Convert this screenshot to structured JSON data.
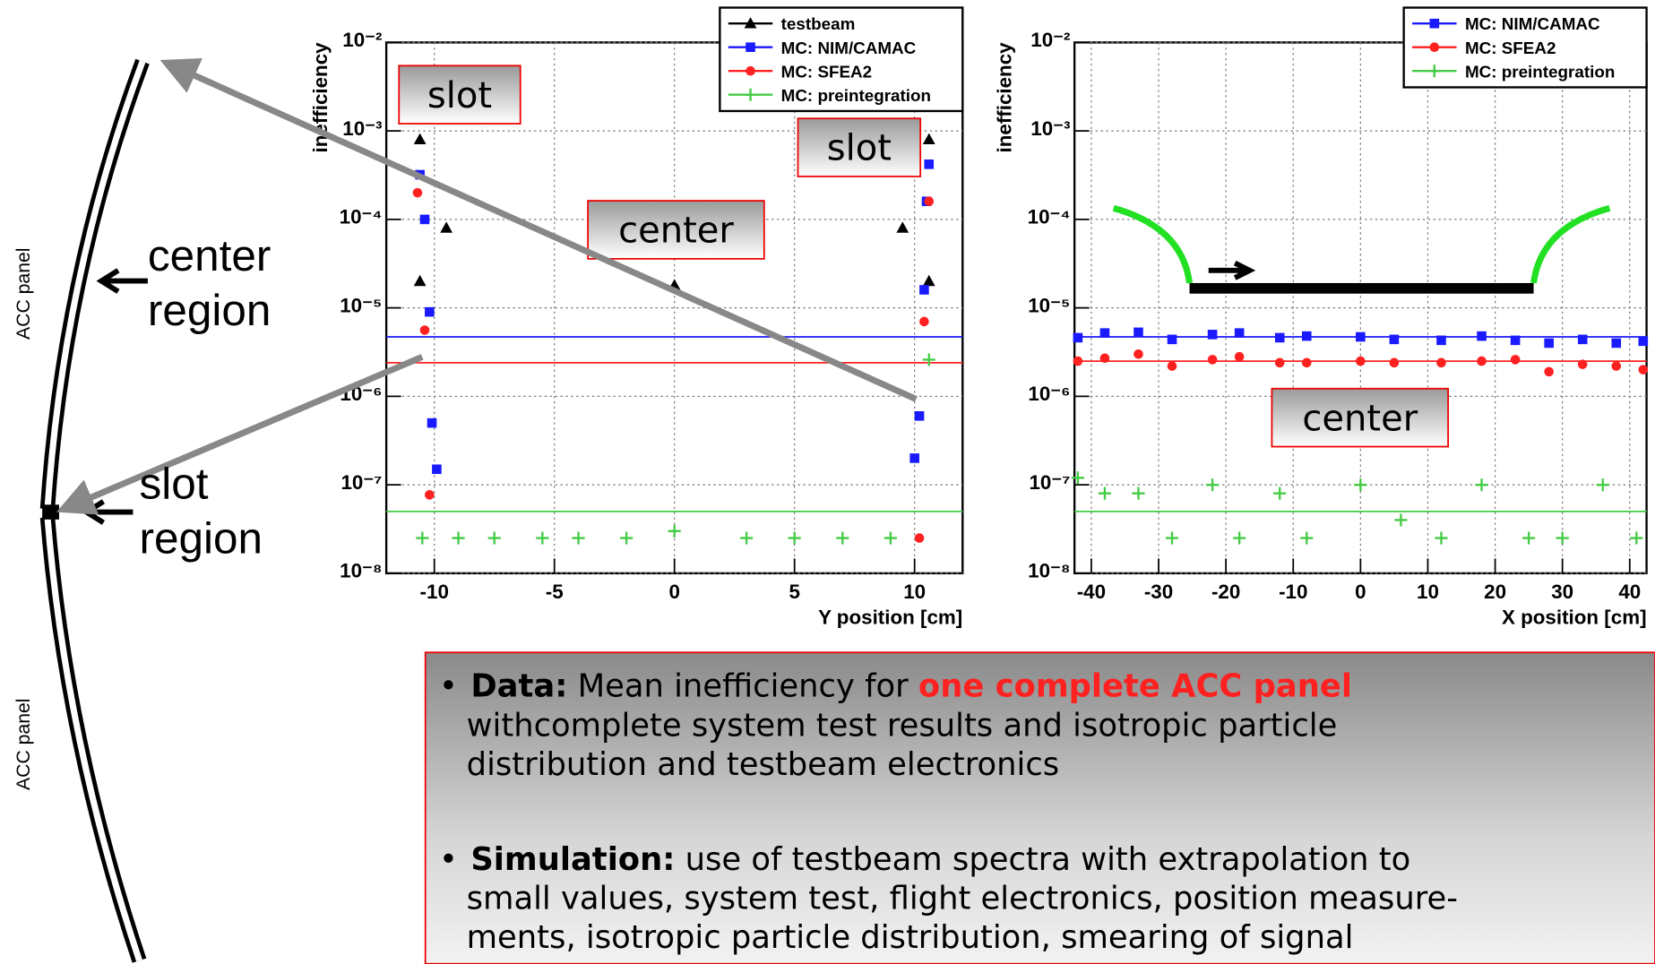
{
  "chart_data": [
    {
      "type": "scatter",
      "log_y": true,
      "grid": true,
      "legend": "top right",
      "y_label": "inefficiency",
      "x_label": "Y position [cm]",
      "xlim": [
        -12,
        12
      ],
      "xticks": [
        -10,
        -5,
        0,
        5,
        10
      ],
      "ylim": [
        1e-08,
        0.01
      ],
      "yticks": [
        {
          "value": 1e-08,
          "label": "10⁻⁸"
        },
        {
          "value": 1e-07,
          "label": "10⁻⁷"
        },
        {
          "value": 1e-06,
          "label": "10⁻⁶"
        },
        {
          "value": 1e-05,
          "label": "10⁻⁵"
        },
        {
          "value": 0.0001,
          "label": "10⁻⁴"
        },
        {
          "value": 0.001,
          "label": "10⁻³"
        },
        {
          "value": 0.01,
          "label": "10⁻²"
        }
      ],
      "annotations": [
        "slot",
        "slot",
        "center"
      ],
      "hlines": [
        {
          "value": 4.7e-06,
          "color": "#1a1aff"
        },
        {
          "value": 2.4e-06,
          "color": "#ff2020"
        },
        {
          "value": 5e-08,
          "color": "#44cc44"
        }
      ],
      "series": [
        {
          "name": "testbeam",
          "color": "#000000",
          "marker": "triangle",
          "x": [
            -10.6,
            -10.6,
            -9.5,
            0,
            9.5,
            10.6,
            10.6
          ],
          "values": [
            0.0008,
            2e-05,
            8e-05,
            1.8e-05,
            8e-05,
            2e-05,
            0.0008
          ]
        },
        {
          "name": "MC: NIM/CAMAC",
          "color": "#1a1aff",
          "marker": "square",
          "x": [
            -10.6,
            -10.4,
            -10.2,
            -10.1,
            -9.9,
            10.6,
            10.5,
            10.4,
            10.2,
            10.0
          ],
          "values": [
            0.00032,
            0.0001,
            9e-06,
            5e-07,
            1.5e-07,
            0.00042,
            0.00016,
            1.6e-05,
            6e-07,
            2e-07
          ]
        },
        {
          "name": "MC: SFEA2",
          "color": "#ff2020",
          "marker": "circle",
          "x": [
            -10.7,
            -10.4,
            -10.2,
            10.6,
            10.4,
            10.2
          ],
          "values": [
            0.0002,
            5.6e-06,
            7.7e-08,
            0.00016,
            7e-06,
            2.5e-08
          ]
        },
        {
          "name": "MC: preintegration",
          "color": "#44cc44",
          "marker": "star",
          "x": [
            -10.5,
            -9,
            -7.5,
            -5.5,
            -4,
            -2,
            0,
            3,
            5,
            7,
            9,
            10.6
          ],
          "values": [
            2.5e-08,
            2.5e-08,
            2.5e-08,
            2.5e-08,
            2.5e-08,
            2.5e-08,
            3e-08,
            2.5e-08,
            2.5e-08,
            2.5e-08,
            2.5e-08,
            2.6e-06
          ]
        }
      ]
    },
    {
      "type": "scatter",
      "log_y": true,
      "grid": true,
      "legend": "top right",
      "y_label": "inefficiency",
      "x_label": "X position [cm]",
      "xlim": [
        -42.5,
        42.5
      ],
      "xticks": [
        -40,
        -30,
        -20,
        -10,
        0,
        10,
        20,
        30,
        40
      ],
      "ylim": [
        1e-08,
        0.01
      ],
      "yticks": [
        {
          "value": 1e-08,
          "label": "10⁻⁸"
        },
        {
          "value": 1e-07,
          "label": "10⁻⁷"
        },
        {
          "value": 1e-06,
          "label": "10⁻⁶"
        },
        {
          "value": 1e-05,
          "label": "10⁻⁵"
        },
        {
          "value": 0.0001,
          "label": "10⁻⁴"
        },
        {
          "value": 0.001,
          "label": "10⁻³"
        },
        {
          "value": 0.01,
          "label": "10⁻²"
        }
      ],
      "annotations": [
        "center"
      ],
      "hlines": [
        {
          "value": 4.7e-06,
          "color": "#1a1aff"
        },
        {
          "value": 2.5e-06,
          "color": "#ff2020"
        },
        {
          "value": 5e-08,
          "color": "#44cc44"
        }
      ],
      "series": [
        {
          "name": "MC: NIM/CAMAC",
          "color": "#1a1aff",
          "marker": "square",
          "x": [
            -42,
            -38,
            -33,
            -28,
            -22,
            -18,
            -12,
            -8,
            0,
            5,
            12,
            18,
            23,
            28,
            33,
            38,
            42
          ],
          "values": [
            4.6e-06,
            5.2e-06,
            5.3e-06,
            4.4e-06,
            5e-06,
            5.2e-06,
            4.6e-06,
            4.8e-06,
            4.7e-06,
            4.4e-06,
            4.3e-06,
            4.8e-06,
            4.3e-06,
            4e-06,
            4.4e-06,
            4e-06,
            4.2e-06
          ]
        },
        {
          "name": "MC: SFEA2",
          "color": "#ff2020",
          "marker": "circle",
          "x": [
            -42,
            -38,
            -33,
            -28,
            -22,
            -18,
            -12,
            -8,
            0,
            5,
            12,
            18,
            23,
            28,
            33,
            38,
            42
          ],
          "values": [
            2.5e-06,
            2.7e-06,
            3e-06,
            2.2e-06,
            2.6e-06,
            2.8e-06,
            2.4e-06,
            2.4e-06,
            2.5e-06,
            2.4e-06,
            2.4e-06,
            2.5e-06,
            2.6e-06,
            1.9e-06,
            2.3e-06,
            2.2e-06,
            2e-06
          ]
        },
        {
          "name": "MC: preintegration",
          "color": "#44cc44",
          "marker": "star",
          "x": [
            -42,
            -38,
            -33,
            -28,
            -22,
            -18,
            -12,
            -8,
            0,
            6,
            12,
            18,
            25,
            30,
            36,
            41
          ],
          "values": [
            1.2e-07,
            8e-08,
            8e-08,
            2.5e-08,
            1e-07,
            2.5e-08,
            8e-08,
            2.5e-08,
            1e-07,
            4e-08,
            2.5e-08,
            1e-07,
            2.5e-08,
            2.5e-08,
            1e-07,
            2.5e-08
          ]
        }
      ]
    }
  ],
  "panel_labels": [
    "ACC panel",
    "ACC panel"
  ],
  "region_labels": [
    [
      "center",
      "region"
    ],
    [
      "slot",
      "region"
    ]
  ],
  "bullet_symbol": "•",
  "bullets": [
    {
      "runs": [
        {
          "text": "Data:",
          "style": "bold"
        },
        {
          "text": " Mean inefficiency for "
        },
        {
          "text": "one complete ACC panel",
          "style": "bold-red"
        }
      ],
      "lines": [
        "withcomplete system test results and isotropic particle",
        "distribution and testbeam electronics"
      ]
    },
    {
      "runs": [
        {
          "text": "Simulation:",
          "style": "bold"
        },
        {
          "text": " use of testbeam spectra with extrapolation to"
        }
      ],
      "lines": [
        "small values, system test, flight electronics, position measure-",
        "ments, isotropic particle distribution, smearing of signal"
      ]
    }
  ]
}
